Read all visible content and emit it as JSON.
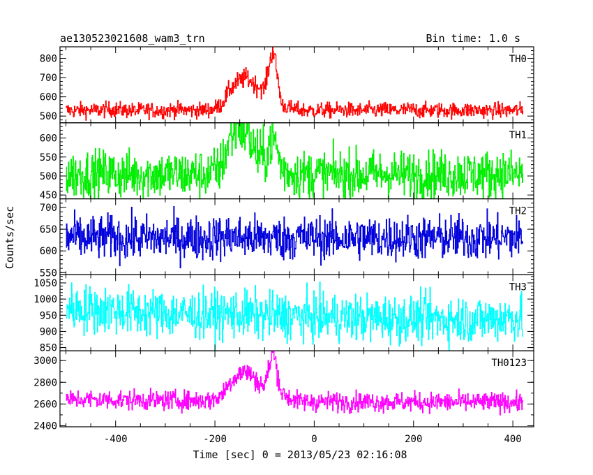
{
  "header": {
    "title": "ae130523021608_wam3_trn",
    "bin_time": "Bin time: 1.0 s"
  },
  "chart_data": {
    "type": "line",
    "xlabel": "Time [sec] 0 = 2013/05/23 02:16:08",
    "ylabel": "Counts/sec",
    "xlim": [
      -512,
      442
    ],
    "xticks": [
      -400,
      -200,
      0,
      200,
      400
    ],
    "grid": false,
    "line_style": "step",
    "bin_sec": 1.0,
    "x_range": [
      -500,
      420
    ],
    "series": [
      {
        "name": "TH0",
        "color": "#ff0000",
        "ylim": [
          465,
          860
        ],
        "yticks": [
          500,
          600,
          700,
          800
        ],
        "values": [
          530,
          528,
          532,
          529,
          531,
          535,
          533,
          530,
          527,
          532,
          530,
          528,
          531,
          533,
          530,
          529,
          532,
          535,
          560,
          640,
          680,
          700,
          660,
          640,
          860,
          560,
          540,
          532,
          530,
          528,
          531,
          529,
          533,
          530,
          528,
          531,
          530,
          532,
          529,
          531,
          533,
          530,
          528,
          531,
          530,
          529,
          532,
          530,
          531,
          528,
          530,
          529,
          531,
          530
        ]
      },
      {
        "name": "TH1",
        "color": "#00ee00",
        "ylim": [
          440,
          640
        ],
        "yticks": [
          450,
          500,
          550,
          600
        ],
        "values": [
          505,
          503,
          506,
          504,
          505,
          507,
          504,
          503,
          505,
          504,
          506,
          503,
          505,
          504,
          503,
          506,
          505,
          508,
          525,
          600,
          640,
          615,
          560,
          545,
          610,
          520,
          508,
          505,
          504,
          506,
          503,
          505,
          504,
          506,
          503,
          505,
          504,
          506,
          505,
          503,
          504,
          506,
          505,
          504,
          503,
          505,
          506,
          504,
          505,
          503,
          505,
          506,
          504,
          505
        ]
      },
      {
        "name": "TH2",
        "color": "#0000dd",
        "ylim": [
          545,
          720
        ],
        "yticks": [
          550,
          600,
          650,
          700
        ],
        "values": [
          630,
          632,
          628,
          631,
          629,
          633,
          630,
          627,
          631,
          629,
          630,
          628,
          632,
          629,
          631,
          630,
          628,
          631,
          630,
          633,
          631,
          630,
          632,
          629,
          631,
          628,
          630,
          632,
          629,
          631,
          630,
          628,
          631,
          629,
          632,
          630,
          628,
          631,
          630,
          629,
          632,
          630,
          628,
          631,
          629,
          630,
          632,
          628,
          631,
          630,
          629,
          631,
          630,
          629
        ]
      },
      {
        "name": "TH3",
        "color": "#00ffff",
        "ylim": [
          840,
          1075
        ],
        "yticks": [
          850,
          900,
          950,
          1000,
          1050
        ],
        "values": [
          975,
          972,
          970,
          968,
          966,
          965,
          963,
          962,
          960,
          958,
          957,
          956,
          955,
          954,
          953,
          952,
          951,
          950,
          952,
          955,
          953,
          951,
          950,
          949,
          948,
          947,
          946,
          945,
          944,
          943,
          944,
          943,
          942,
          941,
          942,
          941,
          940,
          941,
          940,
          939,
          940,
          939,
          940,
          938,
          939,
          938,
          939,
          938,
          937,
          938,
          940,
          945,
          942,
          938
        ]
      },
      {
        "name": "TH0123",
        "color": "#ff00ff",
        "ylim": [
          2390,
          3090
        ],
        "yticks": [
          2400,
          2600,
          2800,
          3000
        ],
        "values": [
          2640,
          2638,
          2645,
          2640,
          2636,
          2642,
          2639,
          2633,
          2640,
          2637,
          2634,
          2631,
          2635,
          2632,
          2630,
          2634,
          2631,
          2640,
          2680,
          2800,
          2880,
          2900,
          2820,
          2760,
          3090,
          2700,
          2650,
          2625,
          2622,
          2625,
          2620,
          2623,
          2621,
          2619,
          2622,
          2620,
          2618,
          2621,
          2619,
          2617,
          2620,
          2618,
          2616,
          2619,
          2617,
          2615,
          2618,
          2616,
          2614,
          2617,
          2615,
          2618,
          2616,
          2615
        ]
      }
    ]
  }
}
